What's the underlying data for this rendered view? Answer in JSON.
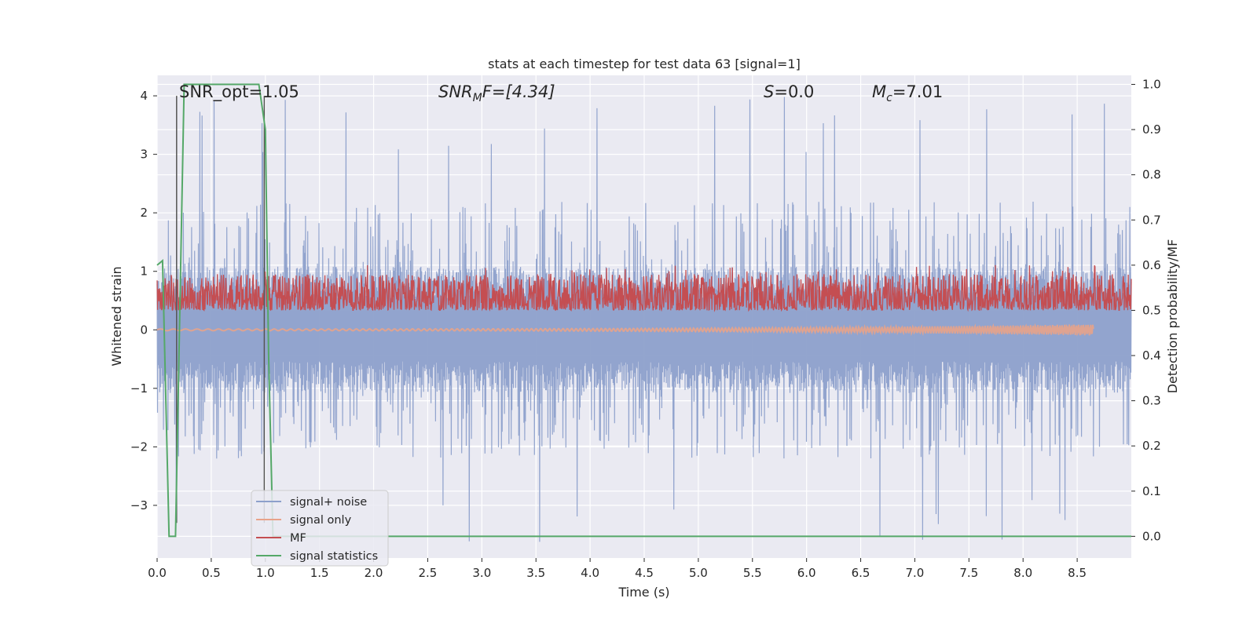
{
  "chart_data": {
    "type": "line",
    "title": "stats at each timestep for test data 63 [signal=1]",
    "xlabel": "Time (s)",
    "ylabel_left": "Whitened strain",
    "ylabel_right": "Detection probability/MF",
    "xlim": [
      0.0,
      9.0
    ],
    "ylim_left": [
      -3.9,
      4.35
    ],
    "ylim_right": [
      -0.048,
      1.02
    ],
    "x_ticks": [
      "0.0",
      "0.5",
      "1.0",
      "1.5",
      "2.0",
      "2.5",
      "3.0",
      "3.5",
      "4.0",
      "4.5",
      "5.0",
      "5.5",
      "6.0",
      "6.5",
      "7.0",
      "7.5",
      "8.0",
      "8.5"
    ],
    "y_ticks_left": [
      "−3",
      "−2",
      "−1",
      "0",
      "1",
      "2",
      "3",
      "4"
    ],
    "y_ticks_right": [
      "0.0",
      "0.1",
      "0.2",
      "0.3",
      "0.4",
      "0.5",
      "0.6",
      "0.7",
      "0.8",
      "0.9",
      "1.0"
    ],
    "grid": true,
    "legend_position": "lower-left",
    "annotations": {
      "snr_opt": "SNR_opt=1.05",
      "snr_mf_label": "SNR",
      "snr_mf_sub": "M",
      "snr_mf_value": "F=[4.34]",
      "s_label": "S",
      "s_value": "=0.0",
      "mc_label": "M",
      "mc_sub": "c",
      "mc_value": "=7.01"
    },
    "series": [
      {
        "name": "signal+ noise",
        "color": "#8da0cb",
        "axis": "left",
        "kind": "noise",
        "x_range": [
          0.0,
          9.0
        ],
        "envelope_pos": [
          0.9,
          2.2,
          4.05
        ],
        "envelope_neg": [
          -0.9,
          -2.2,
          -3.6
        ]
      },
      {
        "name": "signal only",
        "color": "#e8a38a",
        "axis": "left",
        "kind": "chirp",
        "x_range": [
          0.0,
          8.65
        ],
        "amplitude_end": 0.08
      },
      {
        "name": "MF",
        "color": "#c44e52",
        "axis": "right",
        "kind": "noise",
        "x_range": [
          0.0,
          9.0
        ],
        "baseline": 0.5,
        "typical_range": [
          0.5,
          0.58
        ],
        "max": 0.6
      },
      {
        "name": "signal statistics",
        "color": "#55a868",
        "axis": "right",
        "x": [
          0.0,
          0.05,
          0.11,
          0.17,
          0.25,
          0.94,
          1.0,
          1.03,
          1.07,
          2.0,
          9.0
        ],
        "y": [
          0.6,
          0.61,
          0.0,
          0.0,
          1.0,
          1.0,
          0.9,
          0.4,
          0.0,
          0.0,
          0.0
        ]
      }
    ],
    "vertical_lines": [
      {
        "x": 0.18,
        "y_range": [
          -3.3,
          4.0
        ],
        "color": "#555555"
      },
      {
        "x": 0.99,
        "y_range": [
          -3.3,
          4.0
        ],
        "color": "#555555"
      }
    ]
  }
}
